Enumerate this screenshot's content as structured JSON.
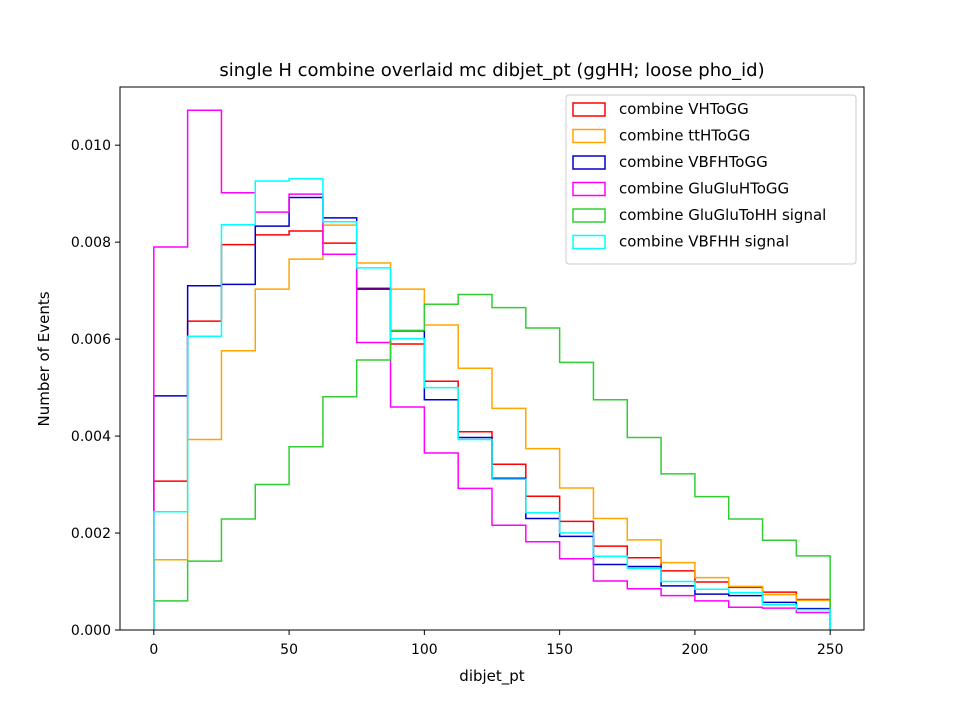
{
  "chart_data": {
    "type": "histogram",
    "title": "single H combine overlaid mc dibjet_pt (ggHH; loose pho_id)",
    "xlabel": "dibjet_pt",
    "ylabel": "Number of Events",
    "xlim": [
      -12.5,
      262.5
    ],
    "ylim": [
      0,
      0.0112
    ],
    "bin_edges": [
      0,
      12.5,
      25,
      37.5,
      50,
      62.5,
      75,
      87.5,
      100,
      112.5,
      125,
      137.5,
      150,
      162.5,
      175,
      187.5,
      200,
      212.5,
      225,
      237.5,
      250
    ],
    "x_ticks": [
      0,
      50,
      100,
      150,
      200,
      250
    ],
    "x_tick_labels": [
      "0",
      "50",
      "100",
      "150",
      "200",
      "250"
    ],
    "y_ticks": [
      0,
      0.002,
      0.004,
      0.006,
      0.008,
      0.01
    ],
    "y_tick_labels": [
      "0.000",
      "0.002",
      "0.004",
      "0.006",
      "0.008",
      "0.010"
    ],
    "legend_position": "upper right",
    "series": [
      {
        "name": "combine VHToGG",
        "color": "#ff0000",
        "values": [
          0.00307,
          0.00637,
          0.00795,
          0.00815,
          0.00823,
          0.00798,
          0.00705,
          0.0059,
          0.00513,
          0.00409,
          0.00342,
          0.00276,
          0.00224,
          0.00173,
          0.00149,
          0.00122,
          0.00099,
          0.00088,
          0.00078,
          0.00063
        ]
      },
      {
        "name": "combine ttHToGG",
        "color": "#ffa500",
        "values": [
          0.00145,
          0.00393,
          0.00576,
          0.00703,
          0.00765,
          0.00835,
          0.00757,
          0.00703,
          0.00629,
          0.0054,
          0.00457,
          0.00374,
          0.00293,
          0.0023,
          0.00186,
          0.00139,
          0.00108,
          0.0009,
          0.00073,
          0.00061
        ]
      },
      {
        "name": "combine VBFHToGG",
        "color": "#0000cd",
        "values": [
          0.00483,
          0.0071,
          0.00713,
          0.00833,
          0.00892,
          0.0085,
          0.00703,
          0.00617,
          0.00475,
          0.00397,
          0.00313,
          0.0023,
          0.00193,
          0.00135,
          0.00131,
          0.00091,
          0.00074,
          0.00071,
          0.00057,
          0.00044
        ]
      },
      {
        "name": "combine GluGluHToGG",
        "color": "#ff00ff",
        "values": [
          0.0079,
          0.01072,
          0.00902,
          0.00862,
          0.00899,
          0.00775,
          0.00593,
          0.0046,
          0.00365,
          0.00292,
          0.00216,
          0.00182,
          0.00147,
          0.00101,
          0.00085,
          0.00071,
          0.0006,
          0.00047,
          0.00045,
          0.00036
        ]
      },
      {
        "name": "combine GluGluToHH signal",
        "color": "#32cd32",
        "values": [
          0.0006,
          0.00142,
          0.00229,
          0.003,
          0.00378,
          0.00481,
          0.00557,
          0.00618,
          0.00672,
          0.00692,
          0.00665,
          0.00623,
          0.00552,
          0.00475,
          0.00397,
          0.00322,
          0.00275,
          0.00229,
          0.00185,
          0.00153
        ]
      },
      {
        "name": "combine VBFHH signal",
        "color": "#00ffff",
        "values": [
          0.00244,
          0.00606,
          0.00836,
          0.00926,
          0.00931,
          0.00842,
          0.00747,
          0.00601,
          0.005,
          0.00393,
          0.00311,
          0.00242,
          0.002,
          0.00152,
          0.00127,
          0.001,
          0.00084,
          0.00077,
          0.00052,
          0.00042
        ]
      }
    ]
  }
}
